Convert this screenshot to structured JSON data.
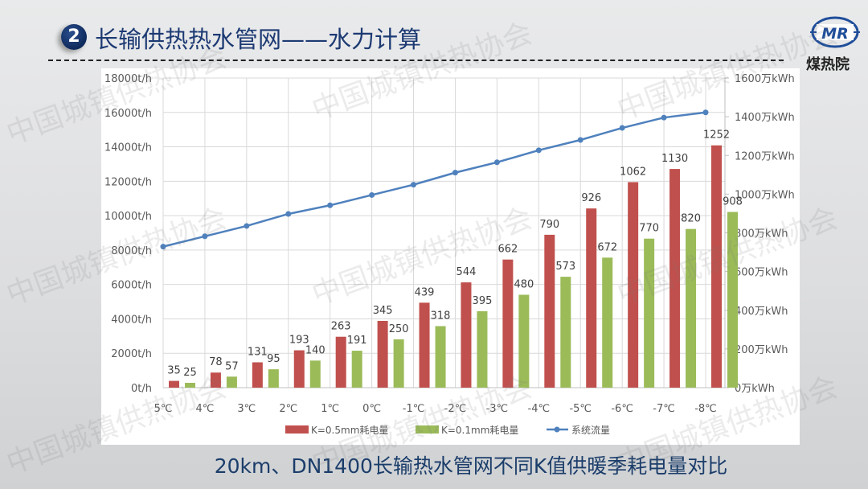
{
  "header": {
    "section_number": "2",
    "title": "长输供热热水管网——水力计算",
    "logo_mark": "MR",
    "logo_name": "煤热院"
  },
  "caption": "20km、DN1400长输热水管网不同K值供暖季耗电量对比",
  "colors": {
    "bar_k05": "#c0504d",
    "bar_k01": "#9bbb59",
    "line_flow": "#4f81bd",
    "title_blue": "#1c3a73"
  },
  "chart_data": {
    "type": "bar",
    "categories": [
      "5℃",
      "4℃",
      "3℃",
      "2℃",
      "1℃",
      "0℃",
      "-1℃",
      "-2℃",
      "-3℃",
      "-4℃",
      "-5℃",
      "-6℃",
      "-7℃",
      "-8℃"
    ],
    "series": [
      {
        "name": "K=0.5mm耗电量",
        "type": "bar",
        "axis": "right",
        "values": [
          35,
          78,
          131,
          193,
          263,
          345,
          439,
          544,
          662,
          790,
          926,
          1062,
          1130,
          1252
        ],
        "labels": [
          "35",
          "78",
          "131",
          "193",
          "263",
          "345",
          "439",
          "544",
          "662",
          "790",
          "926",
          "1062",
          "1130",
          "1252"
        ]
      },
      {
        "name": "K=0.1mm耗电量",
        "type": "bar",
        "axis": "right",
        "values": [
          25,
          57,
          95,
          140,
          191,
          250,
          318,
          395,
          480,
          573,
          672,
          770,
          820,
          908
        ],
        "labels": [
          "25",
          "57",
          "95",
          "140",
          "191",
          "250",
          "318",
          "395",
          "480",
          "573",
          "672",
          "770",
          "820",
          "908"
        ]
      },
      {
        "name": "系统流量",
        "type": "line",
        "axis": "left",
        "values": [
          8200,
          8800,
          9400,
          10100,
          10600,
          11200,
          11800,
          12500,
          13100,
          13800,
          14400,
          15100,
          15700,
          16000
        ]
      }
    ],
    "left_axis": {
      "ylim": [
        0,
        18000
      ],
      "ticks": [
        "0t/h",
        "2000t/h",
        "4000t/h",
        "6000t/h",
        "8000t/h",
        "10000t/h",
        "12000t/h",
        "14000t/h",
        "16000t/h",
        "18000t/h"
      ]
    },
    "right_axis": {
      "ylim": [
        0,
        1600
      ],
      "ticks": [
        "0万kWh",
        "200万kWh",
        "400万kWh",
        "600万kWh",
        "800万kWh",
        "1000万kWh",
        "1200万kWh",
        "1400万kWh",
        "1600万kWh"
      ]
    },
    "grid": true,
    "legend": {
      "position": "bottom",
      "entries": [
        "K=0.5mm耗电量",
        "K=0.1mm耗电量",
        "系统流量"
      ]
    }
  },
  "watermark": "中国城镇供热协会"
}
